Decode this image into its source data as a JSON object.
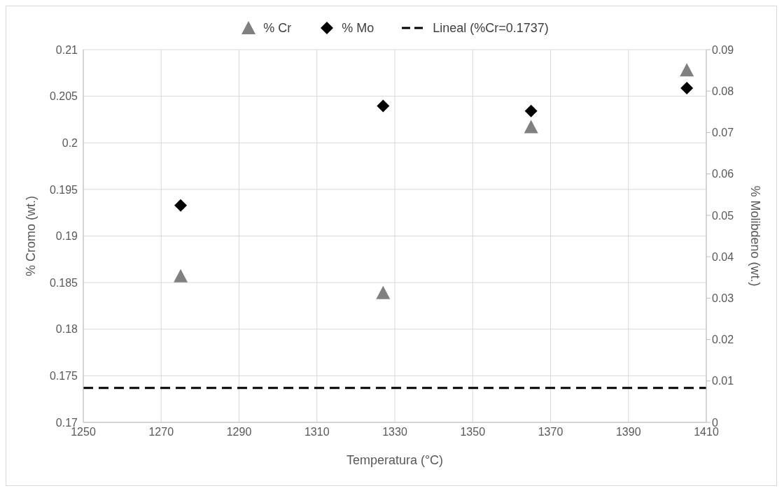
{
  "chart_data": {
    "type": "scatter",
    "xlabel": "Temperatura (°C)",
    "ylabel": "% Cromo (wt.)",
    "y2label": "% Molibdeno (wt.)",
    "x": [
      1275,
      1327,
      1365,
      1405
    ],
    "series": [
      {
        "name": "% Cr",
        "color": "#808080",
        "marker": "triangle",
        "values": [
          0.1857,
          0.1839,
          0.2017,
          0.2078
        ]
      },
      {
        "name": "% Mo",
        "color": "#000000",
        "marker": "diamond",
        "axis": "y2",
        "values": [
          0.0524,
          0.0764,
          0.0752,
          0.0807
        ]
      },
      {
        "name": "Lineal (%Cr=0.1737)",
        "type": "line",
        "color": "#000000",
        "marker": "none",
        "line_style": "dashed",
        "x": [
          1250,
          1410
        ],
        "values": [
          0.1737,
          0.1737
        ]
      }
    ],
    "xlim": [
      1250,
      1410
    ],
    "xticks": [
      1250,
      1270,
      1290,
      1310,
      1330,
      1350,
      1370,
      1390,
      1410
    ],
    "ylim": [
      0.17,
      0.21
    ],
    "yticks": [
      0.17,
      0.175,
      0.18,
      0.185,
      0.19,
      0.195,
      0.2,
      0.205,
      0.21
    ],
    "y2lim": [
      0,
      0.09
    ],
    "y2ticks": [
      0,
      0.01,
      0.02,
      0.03,
      0.04,
      0.05,
      0.06,
      0.07,
      0.08,
      0.09
    ],
    "grid": true,
    "legend": "top"
  }
}
